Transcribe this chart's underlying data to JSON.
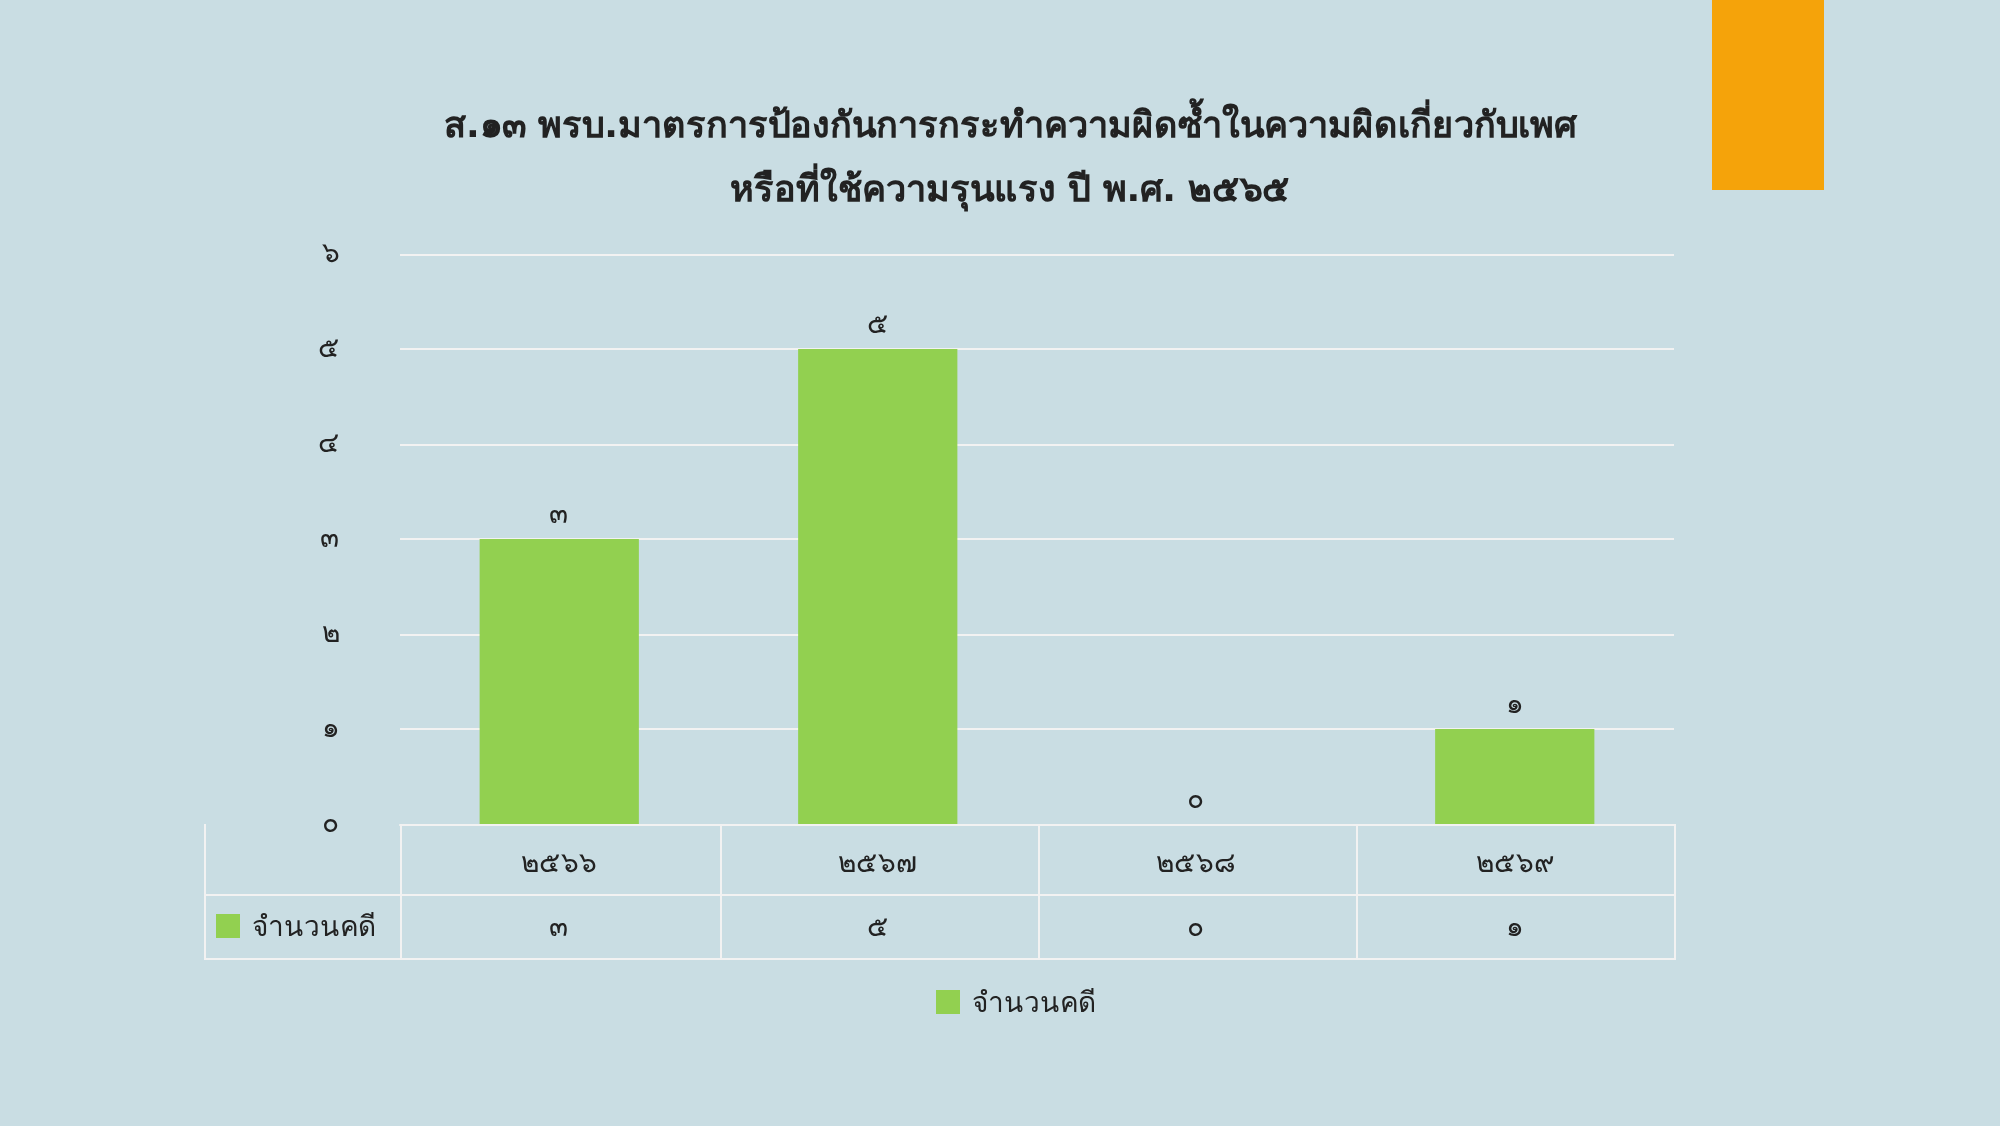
{
  "chart_data": {
    "type": "bar",
    "title": "ส.๑๓ พรบ.มาตรการป้องกันการกระทำความผิดซ้ำในความผิดเกี่ยวกับเพศ\nหรือที่ใช้ความรุนแรง ปี พ.ศ. ๒๕๖๕",
    "categories": [
      "๒๕๖๖",
      "๒๕๖๗",
      "๒๕๖๘",
      "๒๕๖๙"
    ],
    "series": [
      {
        "name": "จำนวนคดี",
        "color": "#92d050",
        "values": [
          3,
          5,
          0,
          1
        ],
        "value_labels": [
          "๓",
          "๕",
          "๐",
          "๑"
        ]
      }
    ],
    "ylim": [
      0,
      6
    ],
    "yticks": [
      {
        "value": 0,
        "label": "๐"
      },
      {
        "value": 1,
        "label": "๑"
      },
      {
        "value": 2,
        "label": "๒"
      },
      {
        "value": 3,
        "label": "๓"
      },
      {
        "value": 4,
        "label": "๔"
      },
      {
        "value": 5,
        "label": "๕"
      },
      {
        "value": 6,
        "label": "๖"
      }
    ],
    "grid": "y",
    "legend": "bottom"
  }
}
